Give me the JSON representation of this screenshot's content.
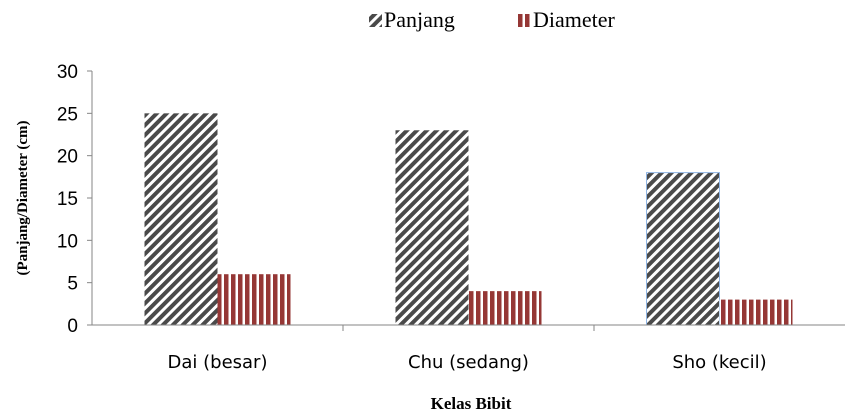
{
  "chart_data": {
    "type": "bar",
    "categories": [
      "Dai (besar)",
      "Chu (sedang)",
      "Sho (kecil)"
    ],
    "series": [
      {
        "name": "Panjang",
        "values": [
          25,
          23,
          18
        ],
        "pattern": "diagonal-hatch",
        "color": "#444444"
      },
      {
        "name": "Diameter",
        "values": [
          6,
          4,
          3
        ],
        "pattern": "vertical-stripes",
        "color": "#943634"
      }
    ],
    "title": "",
    "xlabel": "Kelas Bibit",
    "ylabel": "(Panjang/Diameter (cm)",
    "ylim": [
      0,
      30
    ],
    "yticks": [
      0,
      5,
      10,
      15,
      20,
      25,
      30
    ],
    "grid": false,
    "legend_position": "top-center"
  }
}
